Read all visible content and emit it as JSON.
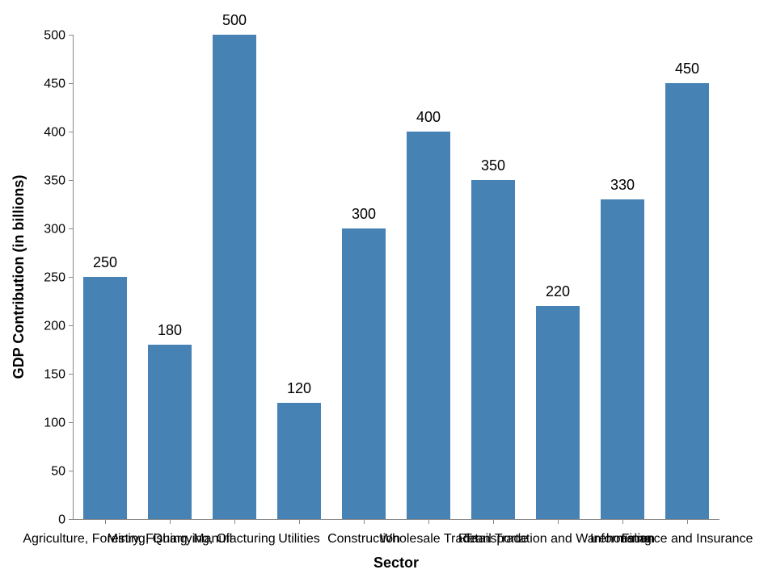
{
  "chart_data": {
    "type": "bar",
    "title": "",
    "xlabel": "Sector",
    "ylabel": "GDP Contribution (in billions)",
    "categories": [
      "Agriculture, Forestry, Fishing",
      "Mining, Quarrying, Oil",
      "Manufacturing",
      "Utilities",
      "Construction",
      "Wholesale Trade",
      "Retail Trade",
      "Transportation and Warehousing",
      "Information",
      "Finance and Insurance"
    ],
    "values": [
      250,
      180,
      500,
      120,
      300,
      400,
      350,
      220,
      330,
      450
    ],
    "ylim": [
      0,
      500
    ],
    "yticks": [
      0,
      50,
      100,
      150,
      200,
      250,
      300,
      350,
      400,
      450,
      500
    ],
    "grid": false,
    "bar_color": "#4682b4",
    "axis_color": "#888888"
  }
}
